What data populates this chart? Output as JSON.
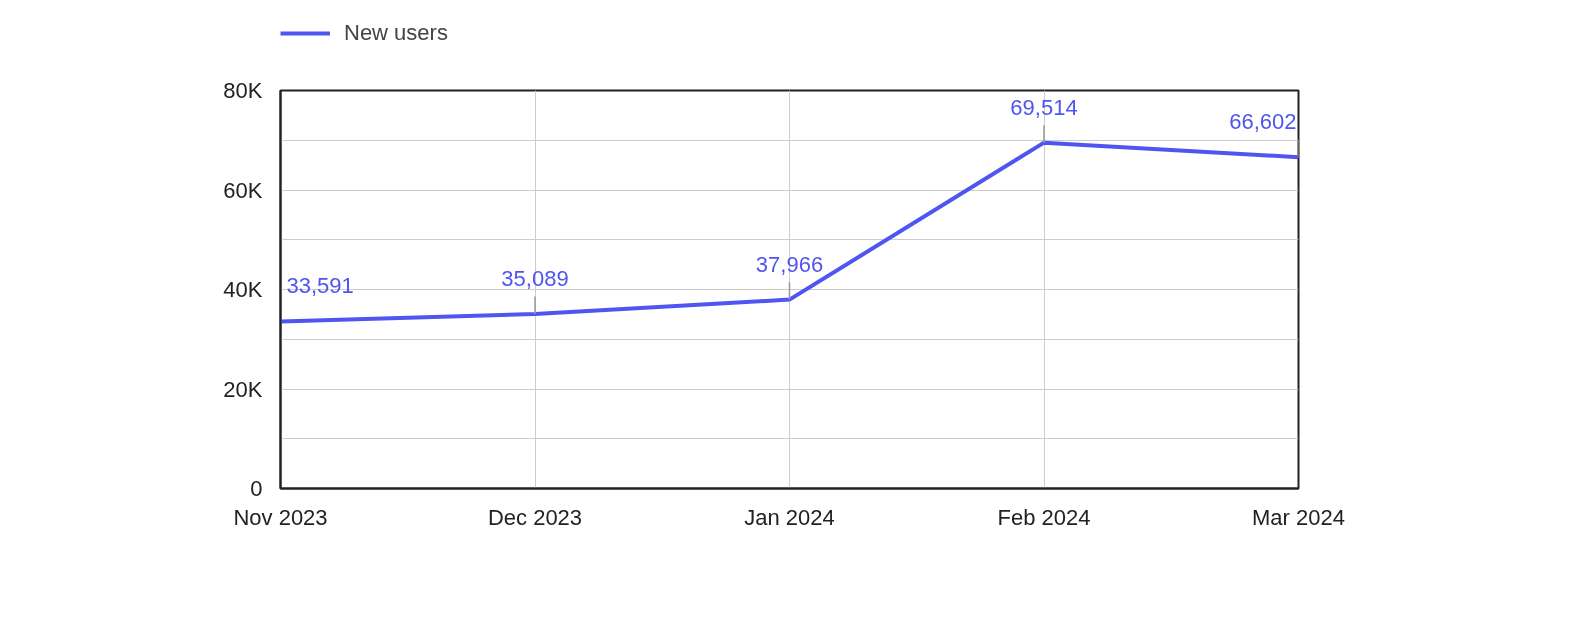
{
  "chart_data": {
    "type": "line",
    "categories": [
      "Nov 2023",
      "Dec 2023",
      "Jan 2024",
      "Feb 2024",
      "Mar 2024"
    ],
    "series": [
      {
        "name": "New users",
        "color": "#4f55f0",
        "values": [
          33591,
          35089,
          37966,
          69514,
          66602
        ],
        "value_labels": [
          "33,591",
          "35,089",
          "37,966",
          "69,514",
          "66,602"
        ]
      }
    ],
    "ylim": [
      0,
      80000
    ],
    "yticks": [
      0,
      {
        "value": 10000,
        "label": null
      },
      {
        "value": 20000,
        "label": "20K"
      },
      {
        "value": 30000,
        "label": null
      },
      {
        "value": 40000,
        "label": "40K"
      },
      {
        "value": 50000,
        "label": null
      },
      {
        "value": 60000,
        "label": "60K"
      },
      {
        "value": 70000,
        "label": null
      },
      {
        "value": 80000,
        "label": "80K"
      }
    ],
    "grid": true,
    "legend": "top left",
    "marker": "none",
    "line_style": "solid"
  }
}
